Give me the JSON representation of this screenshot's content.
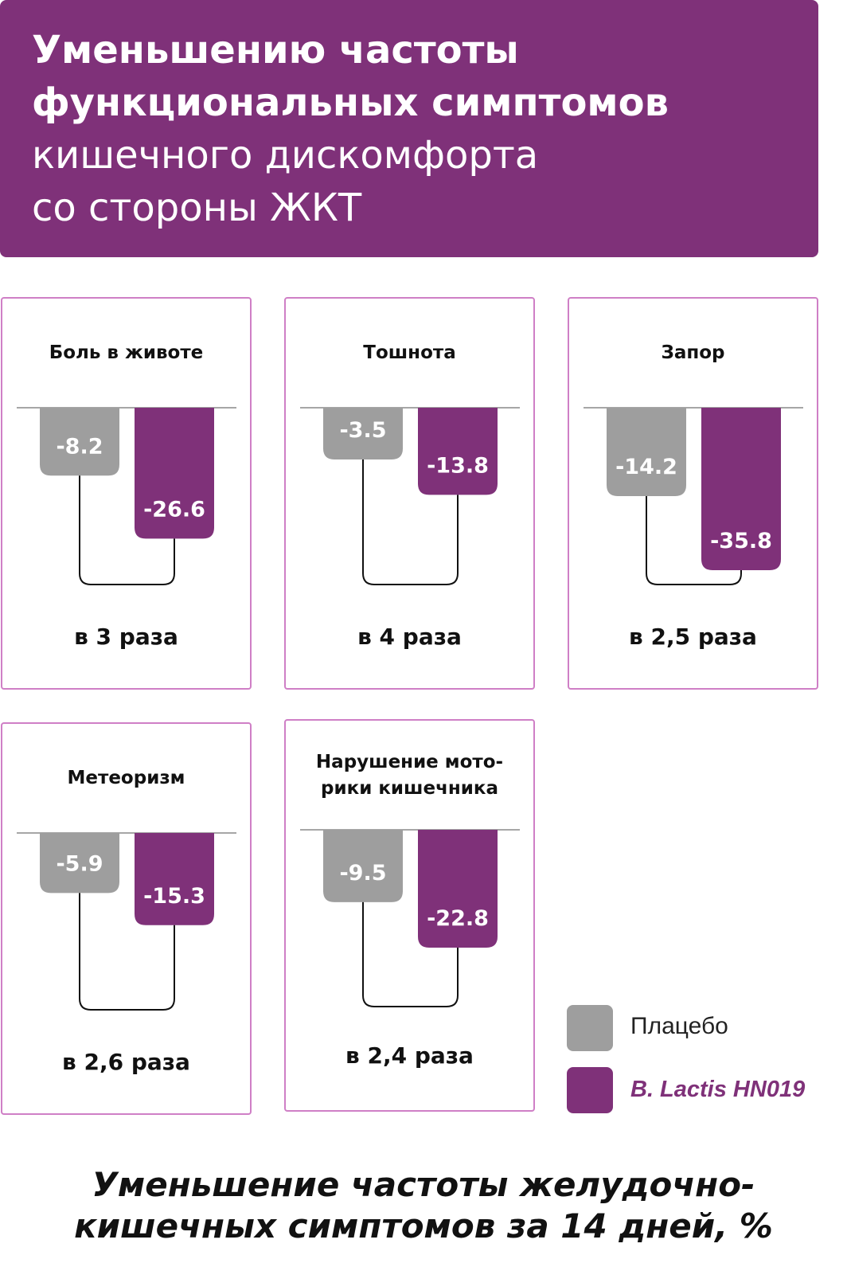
{
  "header": {
    "title_bold": "Уменьшению частоты\nфункциональных симптомов",
    "title_regular": "кишечного дискомфорта\nсо стороны ЖКТ"
  },
  "chart_data": {
    "type": "bar",
    "categories": [
      "Боль в животе",
      "Тошнота",
      "Запор",
      "Метеоризм",
      "Нарушение мото-\nрики кишечника"
    ],
    "series": [
      {
        "name": "Плацебо",
        "color": "#9e9e9e",
        "values": [
          -8.2,
          -3.5,
          -14.2,
          -5.9,
          -9.5
        ]
      },
      {
        "name": "B. Lactis HN019",
        "color": "#7f3179",
        "values": [
          -26.6,
          -13.8,
          -35.8,
          -15.3,
          -22.8
        ]
      }
    ],
    "annotations": [
      "в 3 раза",
      "в 4 раза",
      "в 2,5 раза",
      "в 2,6 раза",
      "в 2,4 раза"
    ],
    "ylim": [
      -40,
      0
    ]
  },
  "footer": "Уменьшение частоты желудочно-\nкишечных симптомов за 14 дней, %"
}
